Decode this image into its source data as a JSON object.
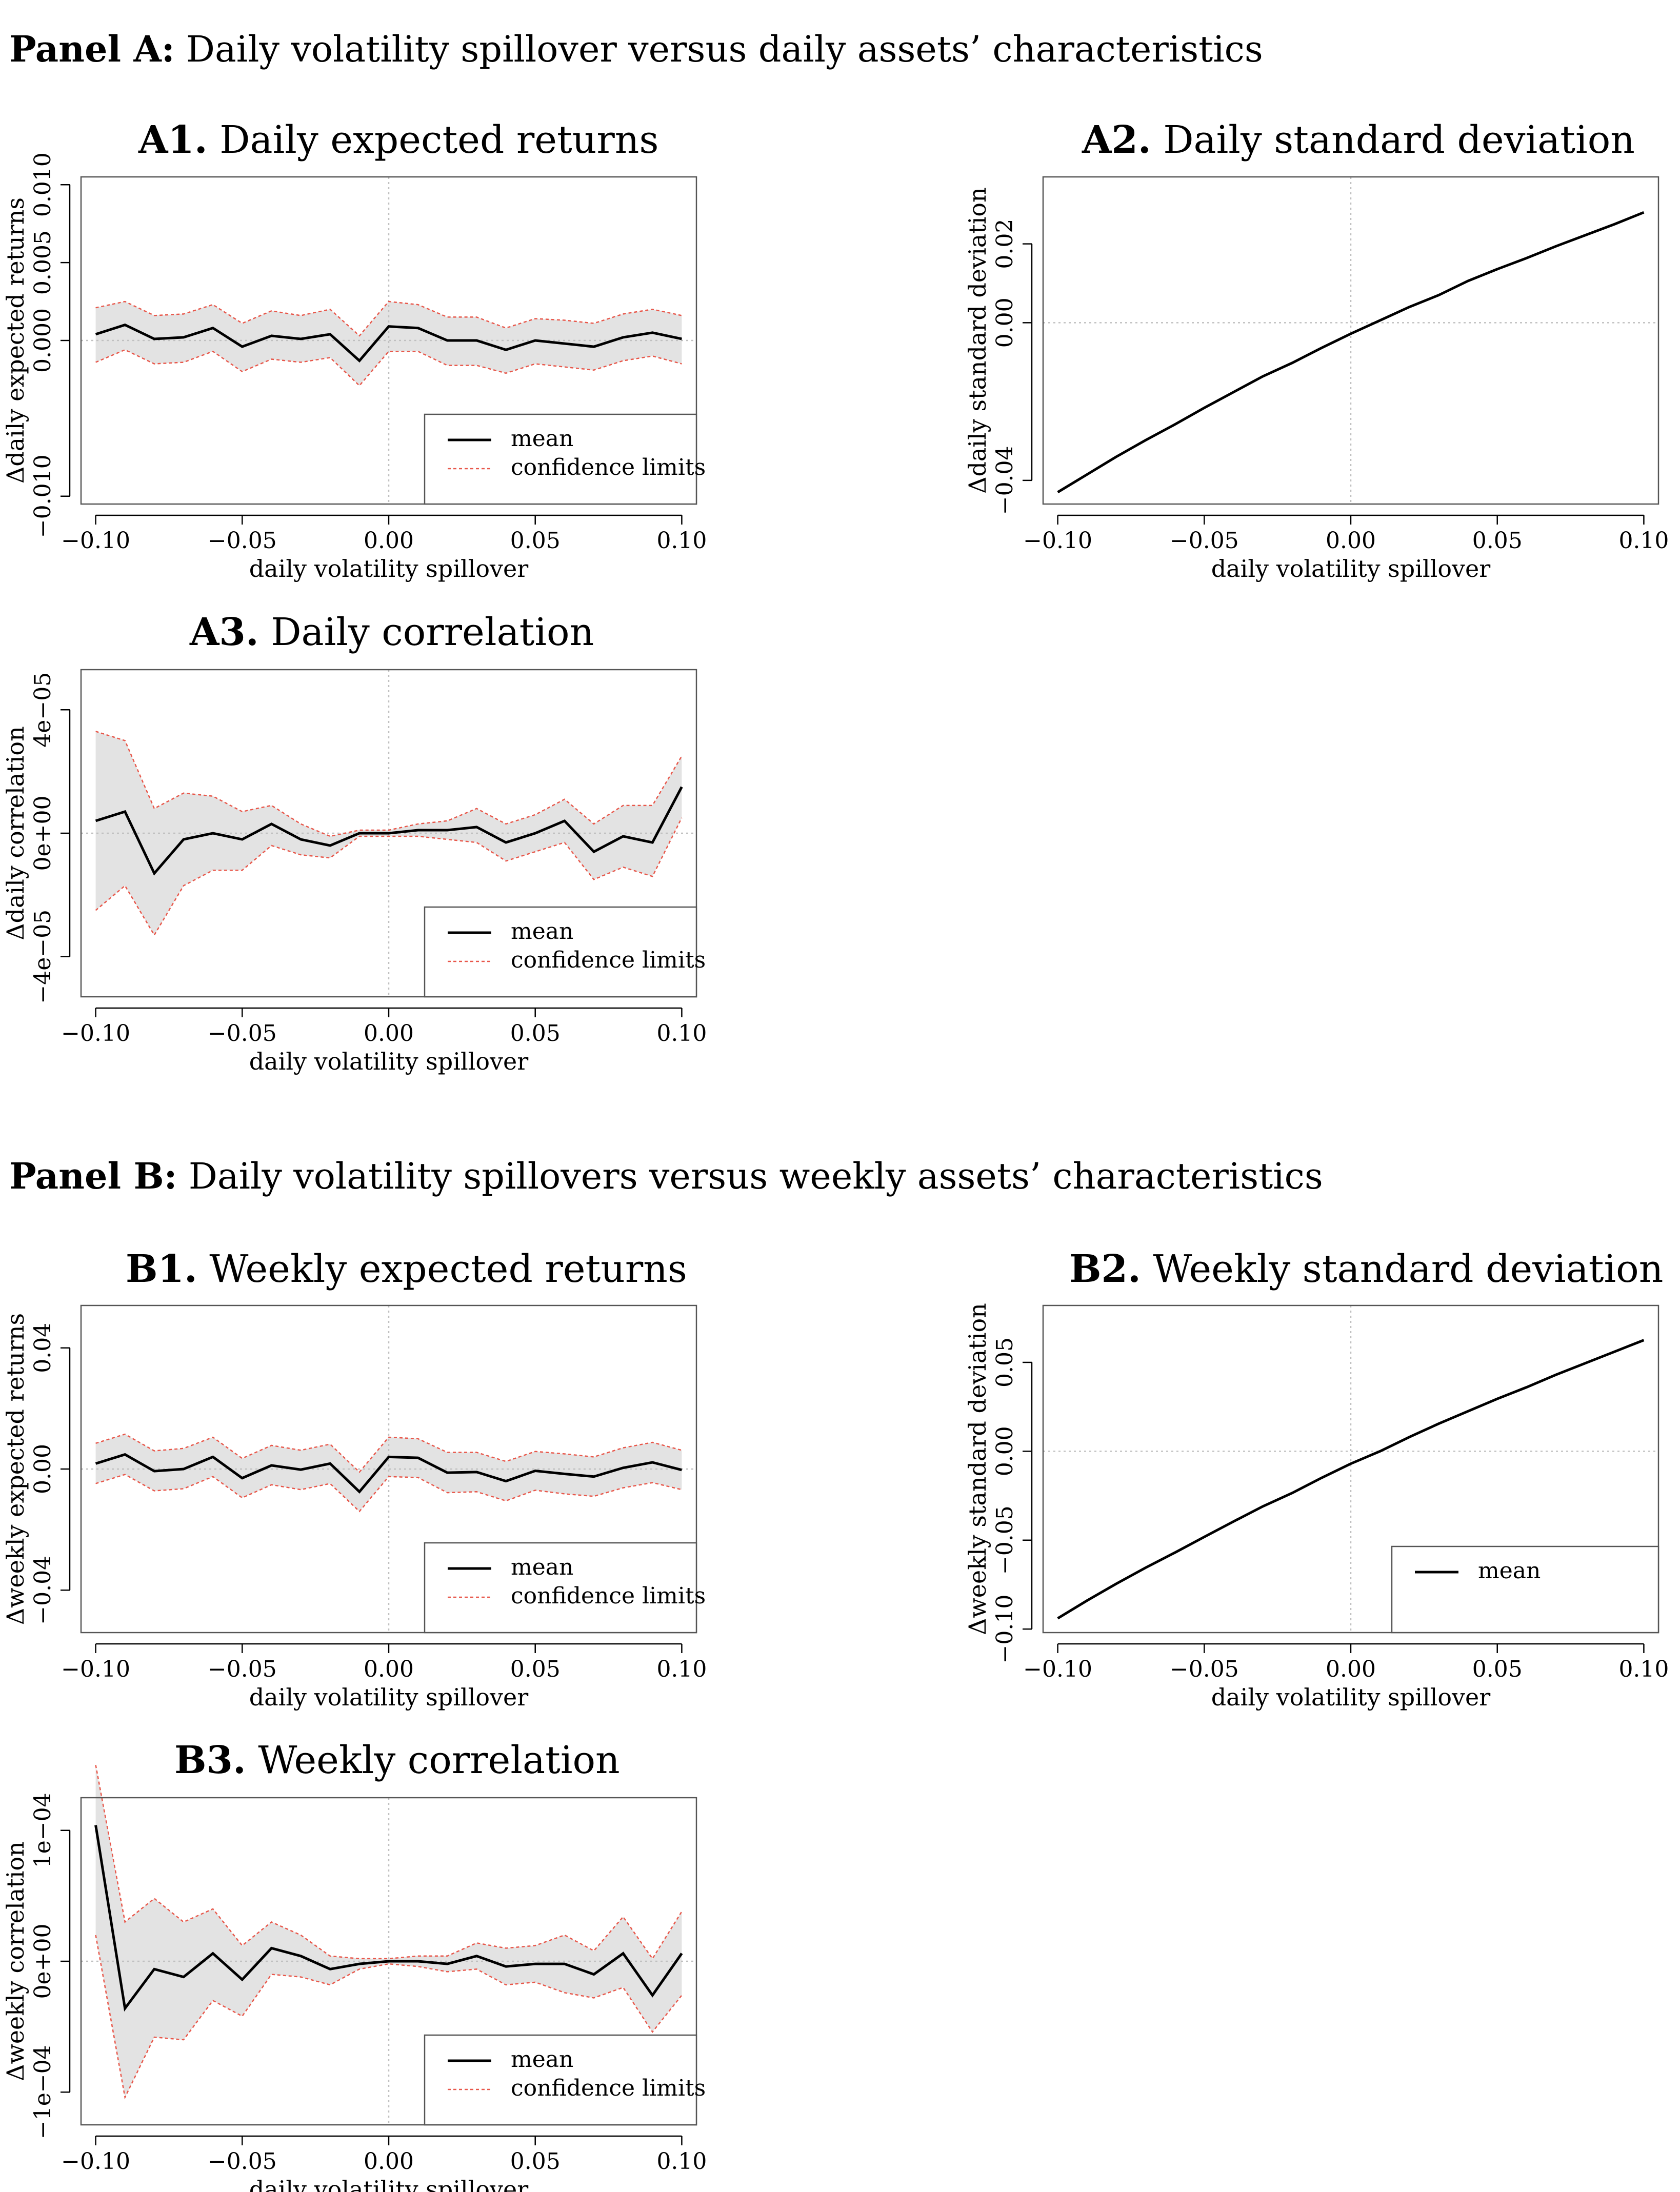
{
  "panels": [
    {
      "bold": "Panel A:",
      "text": " Daily volatility spillover versus daily assets’ characteristics"
    },
    {
      "bold": "Panel B:",
      "text": " Daily volatility spillovers versus weekly assets’ characteristics"
    }
  ],
  "colors": {
    "mean": "#000000",
    "confidence": "#e8574a",
    "band": "#e3e3e3",
    "reference": "#c0c0c0"
  },
  "chart_data": [
    {
      "id": "A1",
      "type": "line",
      "title_bold": "A1.",
      "title": " Daily expected returns",
      "xlabel": "daily volatility spillover",
      "ylabel": "Δdaily expected returns",
      "xlim": [
        -0.105,
        0.105
      ],
      "ylim": [
        -0.0105,
        0.0105
      ],
      "xticks": [
        -0.1,
        -0.05,
        0.0,
        0.05,
        0.1
      ],
      "xtick_labels": [
        "−0.10",
        "−0.05",
        "0.00",
        "0.05",
        "0.10"
      ],
      "yticks": [
        -0.01,
        0.0,
        0.005,
        0.01
      ],
      "ytick_labels": [
        "−0.010",
        "0.000",
        "0.005",
        "0.010"
      ],
      "x": [
        -0.1,
        -0.09,
        -0.08,
        -0.07,
        -0.06,
        -0.05,
        -0.04,
        -0.03,
        -0.02,
        -0.01,
        0.0,
        0.01,
        0.02,
        0.03,
        0.04,
        0.05,
        0.06,
        0.07,
        0.08,
        0.09,
        0.1
      ],
      "mean": [
        0.0004,
        0.001,
        0.0001,
        0.0002,
        0.0008,
        -0.0004,
        0.0003,
        0.0001,
        0.0004,
        -0.0013,
        0.0009,
        0.0008,
        0.0,
        0.0,
        -0.0006,
        0.0,
        -0.0002,
        -0.0004,
        0.0002,
        0.0005,
        0.0001
      ],
      "upper": [
        0.0021,
        0.0025,
        0.0016,
        0.0017,
        0.0023,
        0.0011,
        0.0019,
        0.0016,
        0.002,
        0.0003,
        0.0025,
        0.0023,
        0.0015,
        0.0015,
        0.0008,
        0.0014,
        0.0013,
        0.0011,
        0.0017,
        0.002,
        0.0016
      ],
      "lower": [
        -0.0014,
        -0.0006,
        -0.0015,
        -0.0014,
        -0.0007,
        -0.002,
        -0.0012,
        -0.0014,
        -0.0011,
        -0.0029,
        -0.0007,
        -0.0007,
        -0.0016,
        -0.0016,
        -0.0021,
        -0.0015,
        -0.0017,
        -0.0019,
        -0.0013,
        -0.001,
        -0.0015
      ],
      "legend": [
        "mean",
        "confidence limits"
      ],
      "legend_position": "bottom-right"
    },
    {
      "id": "A2",
      "type": "line",
      "title_bold": "A2.",
      "title": " Daily standard deviation",
      "xlabel": "daily volatility spillover",
      "ylabel": "Δdaily standard deviation",
      "xlim": [
        -0.105,
        0.105
      ],
      "ylim": [
        -0.046,
        0.037
      ],
      "xticks": [
        -0.1,
        -0.05,
        0.0,
        0.05,
        0.1
      ],
      "xtick_labels": [
        "−0.10",
        "−0.05",
        "0.00",
        "0.05",
        "0.10"
      ],
      "yticks": [
        -0.04,
        0.0,
        0.02
      ],
      "ytick_labels": [
        "−0.04",
        "0.00",
        "0.02"
      ],
      "x": [
        -0.1,
        -0.09,
        -0.08,
        -0.07,
        -0.06,
        -0.05,
        -0.04,
        -0.03,
        -0.02,
        -0.01,
        0.0,
        0.01,
        0.02,
        0.03,
        0.04,
        0.05,
        0.06,
        0.07,
        0.08,
        0.09,
        0.1
      ],
      "mean": [
        -0.043,
        -0.0385,
        -0.034,
        -0.0298,
        -0.0258,
        -0.0216,
        -0.0176,
        -0.0136,
        -0.0102,
        -0.0064,
        -0.0028,
        0.0006,
        0.004,
        0.007,
        0.0106,
        0.0136,
        0.0164,
        0.0194,
        0.0222,
        0.025,
        0.028
      ],
      "legend": [],
      "legend_position": "none"
    },
    {
      "id": "A3",
      "type": "line",
      "title_bold": "A3.",
      "title": " Daily correlation",
      "xlabel": "daily volatility spillover",
      "ylabel": "Δdaily correlation",
      "xlim": [
        -0.105,
        0.105
      ],
      "ylim": [
        -5.3e-05,
        5.3e-05
      ],
      "xticks": [
        -0.1,
        -0.05,
        0.0,
        0.05,
        0.1
      ],
      "xtick_labels": [
        "−0.10",
        "−0.05",
        "0.00",
        "0.05",
        "0.10"
      ],
      "yticks": [
        -4e-05,
        0,
        4e-05
      ],
      "ytick_labels": [
        "−4e−05",
        "0e+00",
        "4e−05"
      ],
      "x": [
        -0.1,
        -0.09,
        -0.08,
        -0.07,
        -0.06,
        -0.05,
        -0.04,
        -0.03,
        -0.02,
        -0.01,
        0.0,
        0.01,
        0.02,
        0.03,
        0.04,
        0.05,
        0.06,
        0.07,
        0.08,
        0.09,
        0.1
      ],
      "mean": [
        4e-06,
        7e-06,
        -1.3e-05,
        -2e-06,
        0.0,
        -2e-06,
        3e-06,
        -2e-06,
        -4e-06,
        0.0,
        0.0,
        1e-06,
        1e-06,
        2e-06,
        -3e-06,
        0.0,
        4e-06,
        -6e-06,
        -1e-06,
        -3e-06,
        1.5e-05
      ],
      "upper": [
        3.3e-05,
        3e-05,
        8e-06,
        1.3e-05,
        1.2e-05,
        7e-06,
        9e-06,
        3e-06,
        -1e-06,
        1e-06,
        1e-06,
        3e-06,
        4e-06,
        8e-06,
        3e-06,
        6e-06,
        1.1e-05,
        3e-06,
        9e-06,
        9e-06,
        2.5e-05
      ],
      "lower": [
        -2.5e-05,
        -1.7e-05,
        -3.3e-05,
        -1.7e-05,
        -1.2e-05,
        -1.2e-05,
        -4e-06,
        -7e-06,
        -8e-06,
        -1e-06,
        -1e-06,
        -1e-06,
        -2e-06,
        -3e-06,
        -9e-06,
        -6e-06,
        -3e-06,
        -1.5e-05,
        -1.1e-05,
        -1.4e-05,
        5e-06
      ],
      "legend": [
        "mean",
        "confidence limits"
      ],
      "legend_position": "bottom-right"
    },
    {
      "id": "B1",
      "type": "line",
      "title_bold": "B1.",
      "title": " Weekly expected returns",
      "xlabel": "daily volatility spillover",
      "ylabel": "Δweekly expected returns",
      "xlim": [
        -0.105,
        0.105
      ],
      "ylim": [
        -0.054,
        0.054
      ],
      "xticks": [
        -0.1,
        -0.05,
        0.0,
        0.05,
        0.1
      ],
      "xtick_labels": [
        "−0.10",
        "−0.05",
        "0.00",
        "0.05",
        "0.10"
      ],
      "yticks": [
        -0.04,
        0.0,
        0.04
      ],
      "ytick_labels": [
        "−0.04",
        "0.00",
        "0.04"
      ],
      "x": [
        -0.1,
        -0.09,
        -0.08,
        -0.07,
        -0.06,
        -0.05,
        -0.04,
        -0.03,
        -0.02,
        -0.01,
        0.0,
        0.01,
        0.02,
        0.03,
        0.04,
        0.05,
        0.06,
        0.07,
        0.08,
        0.09,
        0.1
      ],
      "mean": [
        0.0018,
        0.0048,
        -0.0007,
        0.0,
        0.004,
        -0.003,
        0.0012,
        -0.0002,
        0.0018,
        -0.0075,
        0.004,
        0.0037,
        -0.0012,
        -0.001,
        -0.004,
        -0.0006,
        -0.0016,
        -0.0025,
        0.0004,
        0.0022,
        -0.0003
      ],
      "upper": [
        0.0085,
        0.0115,
        0.006,
        0.0068,
        0.0105,
        0.0035,
        0.0078,
        0.0062,
        0.0082,
        -0.001,
        0.0105,
        0.01,
        0.0055,
        0.0055,
        0.0025,
        0.0058,
        0.005,
        0.004,
        0.007,
        0.0088,
        0.0062
      ],
      "lower": [
        -0.0048,
        -0.0018,
        -0.0072,
        -0.0065,
        -0.0025,
        -0.0095,
        -0.0052,
        -0.0068,
        -0.0048,
        -0.014,
        -0.0025,
        -0.0028,
        -0.0078,
        -0.0075,
        -0.0105,
        -0.007,
        -0.0082,
        -0.009,
        -0.0062,
        -0.0045,
        -0.0068
      ],
      "legend": [
        "mean",
        "confidence limits"
      ],
      "legend_position": "bottom-right"
    },
    {
      "id": "B2",
      "type": "line",
      "title_bold": "B2.",
      "title": " Weekly standard deviation",
      "xlabel": "daily volatility spillover",
      "ylabel": "Δweekly standard deviation",
      "xlim": [
        -0.105,
        0.105
      ],
      "ylim": [
        -0.102,
        0.082
      ],
      "xticks": [
        -0.1,
        -0.05,
        0.0,
        0.05,
        0.1
      ],
      "xtick_labels": [
        "−0.10",
        "−0.05",
        "0.00",
        "0.05",
        "0.10"
      ],
      "yticks": [
        -0.1,
        -0.05,
        0.0,
        0.05
      ],
      "ytick_labels": [
        "−0.10",
        "−0.05",
        "0.00",
        "0.05"
      ],
      "x": [
        -0.1,
        -0.09,
        -0.08,
        -0.07,
        -0.06,
        -0.05,
        -0.04,
        -0.03,
        -0.02,
        -0.01,
        0.0,
        0.01,
        0.02,
        0.03,
        0.04,
        0.05,
        0.06,
        0.07,
        0.08,
        0.09,
        0.1
      ],
      "mean": [
        -0.094,
        -0.084,
        -0.0745,
        -0.0655,
        -0.057,
        -0.0482,
        -0.0395,
        -0.031,
        -0.0235,
        -0.015,
        -0.007,
        0.0,
        0.008,
        0.0155,
        0.0225,
        0.0295,
        0.036,
        0.043,
        0.0495,
        0.056,
        0.0625
      ],
      "legend": [
        "mean"
      ],
      "legend_position": "bottom-right"
    },
    {
      "id": "B3",
      "type": "line",
      "title_bold": "B3.",
      "title": " Weekly correlation",
      "xlabel": "daily volatility spillover",
      "ylabel": "Δweekly correlation",
      "xlim": [
        -0.105,
        0.105
      ],
      "ylim": [
        -0.000125,
        0.000125
      ],
      "xticks": [
        -0.1,
        -0.05,
        0.0,
        0.05,
        0.1
      ],
      "xtick_labels": [
        "−0.10",
        "−0.05",
        "0.00",
        "0.05",
        "0.10"
      ],
      "yticks": [
        -0.0001,
        0,
        0.0001
      ],
      "ytick_labels": [
        "−1e−04",
        "0e+00",
        "1e−04"
      ],
      "x": [
        -0.1,
        -0.09,
        -0.08,
        -0.07,
        -0.06,
        -0.05,
        -0.04,
        -0.03,
        -0.02,
        -0.01,
        0.0,
        0.01,
        0.02,
        0.03,
        0.04,
        0.05,
        0.06,
        0.07,
        0.08,
        0.09,
        0.1
      ],
      "mean": [
        0.000104,
        -3.6e-05,
        -6e-06,
        -1.2e-05,
        6e-06,
        -1.4e-05,
        1e-05,
        4e-06,
        -6e-06,
        -2e-06,
        0.0,
        0.0,
        -2e-06,
        4e-06,
        -4e-06,
        -2e-06,
        -2e-06,
        -1e-05,
        6e-06,
        -2.6e-05,
        6e-06
      ],
      "upper": [
        0.00015,
        3e-05,
        4.8e-05,
        3e-05,
        4e-05,
        1.2e-05,
        3e-05,
        2e-05,
        4e-06,
        2e-06,
        2e-06,
        4e-06,
        4e-06,
        1.4e-05,
        1e-05,
        1.2e-05,
        2e-05,
        8e-06,
        3.4e-05,
        2e-06,
        3.8e-05
      ],
      "lower": [
        2e-05,
        -0.000104,
        -5.8e-05,
        -6e-05,
        -3e-05,
        -4.2e-05,
        -1e-05,
        -1.2e-05,
        -1.8e-05,
        -6e-06,
        -2e-06,
        -4e-06,
        -8e-06,
        -6e-06,
        -1.8e-05,
        -1.6e-05,
        -2.4e-05,
        -2.8e-05,
        -2e-05,
        -5.4e-05,
        -2.6e-05
      ],
      "legend": [
        "mean",
        "confidence limits"
      ],
      "legend_position": "bottom-right"
    }
  ]
}
